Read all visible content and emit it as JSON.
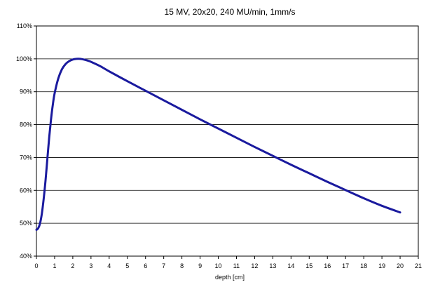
{
  "chart_data": {
    "type": "line",
    "title": "15 MV, 20x20, 240 MU/min, 1mm/s",
    "xlabel": "depth [cm]",
    "ylabel": "",
    "xlim": [
      0,
      21
    ],
    "ylim": [
      40,
      110
    ],
    "x_ticks": [
      "0",
      "1",
      "2",
      "3",
      "4",
      "5",
      "6",
      "7",
      "8",
      "9",
      "10",
      "11",
      "12",
      "13",
      "14",
      "15",
      "16",
      "17",
      "18",
      "19",
      "20",
      "21"
    ],
    "y_ticks": [
      "40%",
      "50%",
      "60%",
      "70%",
      "80%",
      "90%",
      "100%",
      "110%"
    ],
    "grid": "horizontal",
    "series": [
      {
        "color": "#1a1a9e",
        "x": [
          0,
          0.1,
          0.2,
          0.3,
          0.4,
          0.5,
          0.6,
          0.7,
          0.8,
          0.9,
          1.0,
          1.2,
          1.4,
          1.6,
          1.8,
          2.0,
          2.2,
          2.4,
          2.6,
          2.8,
          3.0,
          3.5,
          4.0,
          5.0,
          6.0,
          7.0,
          8.0,
          9.0,
          10.0,
          11.0,
          12.0,
          13.0,
          14.0,
          15.0,
          16.0,
          17.0,
          18.0,
          19.0,
          20.0
        ],
        "y": [
          48,
          48.5,
          50,
          53,
          57.5,
          63,
          69.5,
          76,
          81.5,
          86,
          89.5,
          94,
          96.8,
          98.4,
          99.3,
          99.8,
          100,
          100,
          99.8,
          99.5,
          99.1,
          97.8,
          96.2,
          93.2,
          90.3,
          87.4,
          84.5,
          81.6,
          78.8,
          76,
          73.2,
          70.5,
          67.8,
          65.2,
          62.6,
          60.1,
          57.6,
          55.3,
          53.3
        ]
      }
    ]
  }
}
